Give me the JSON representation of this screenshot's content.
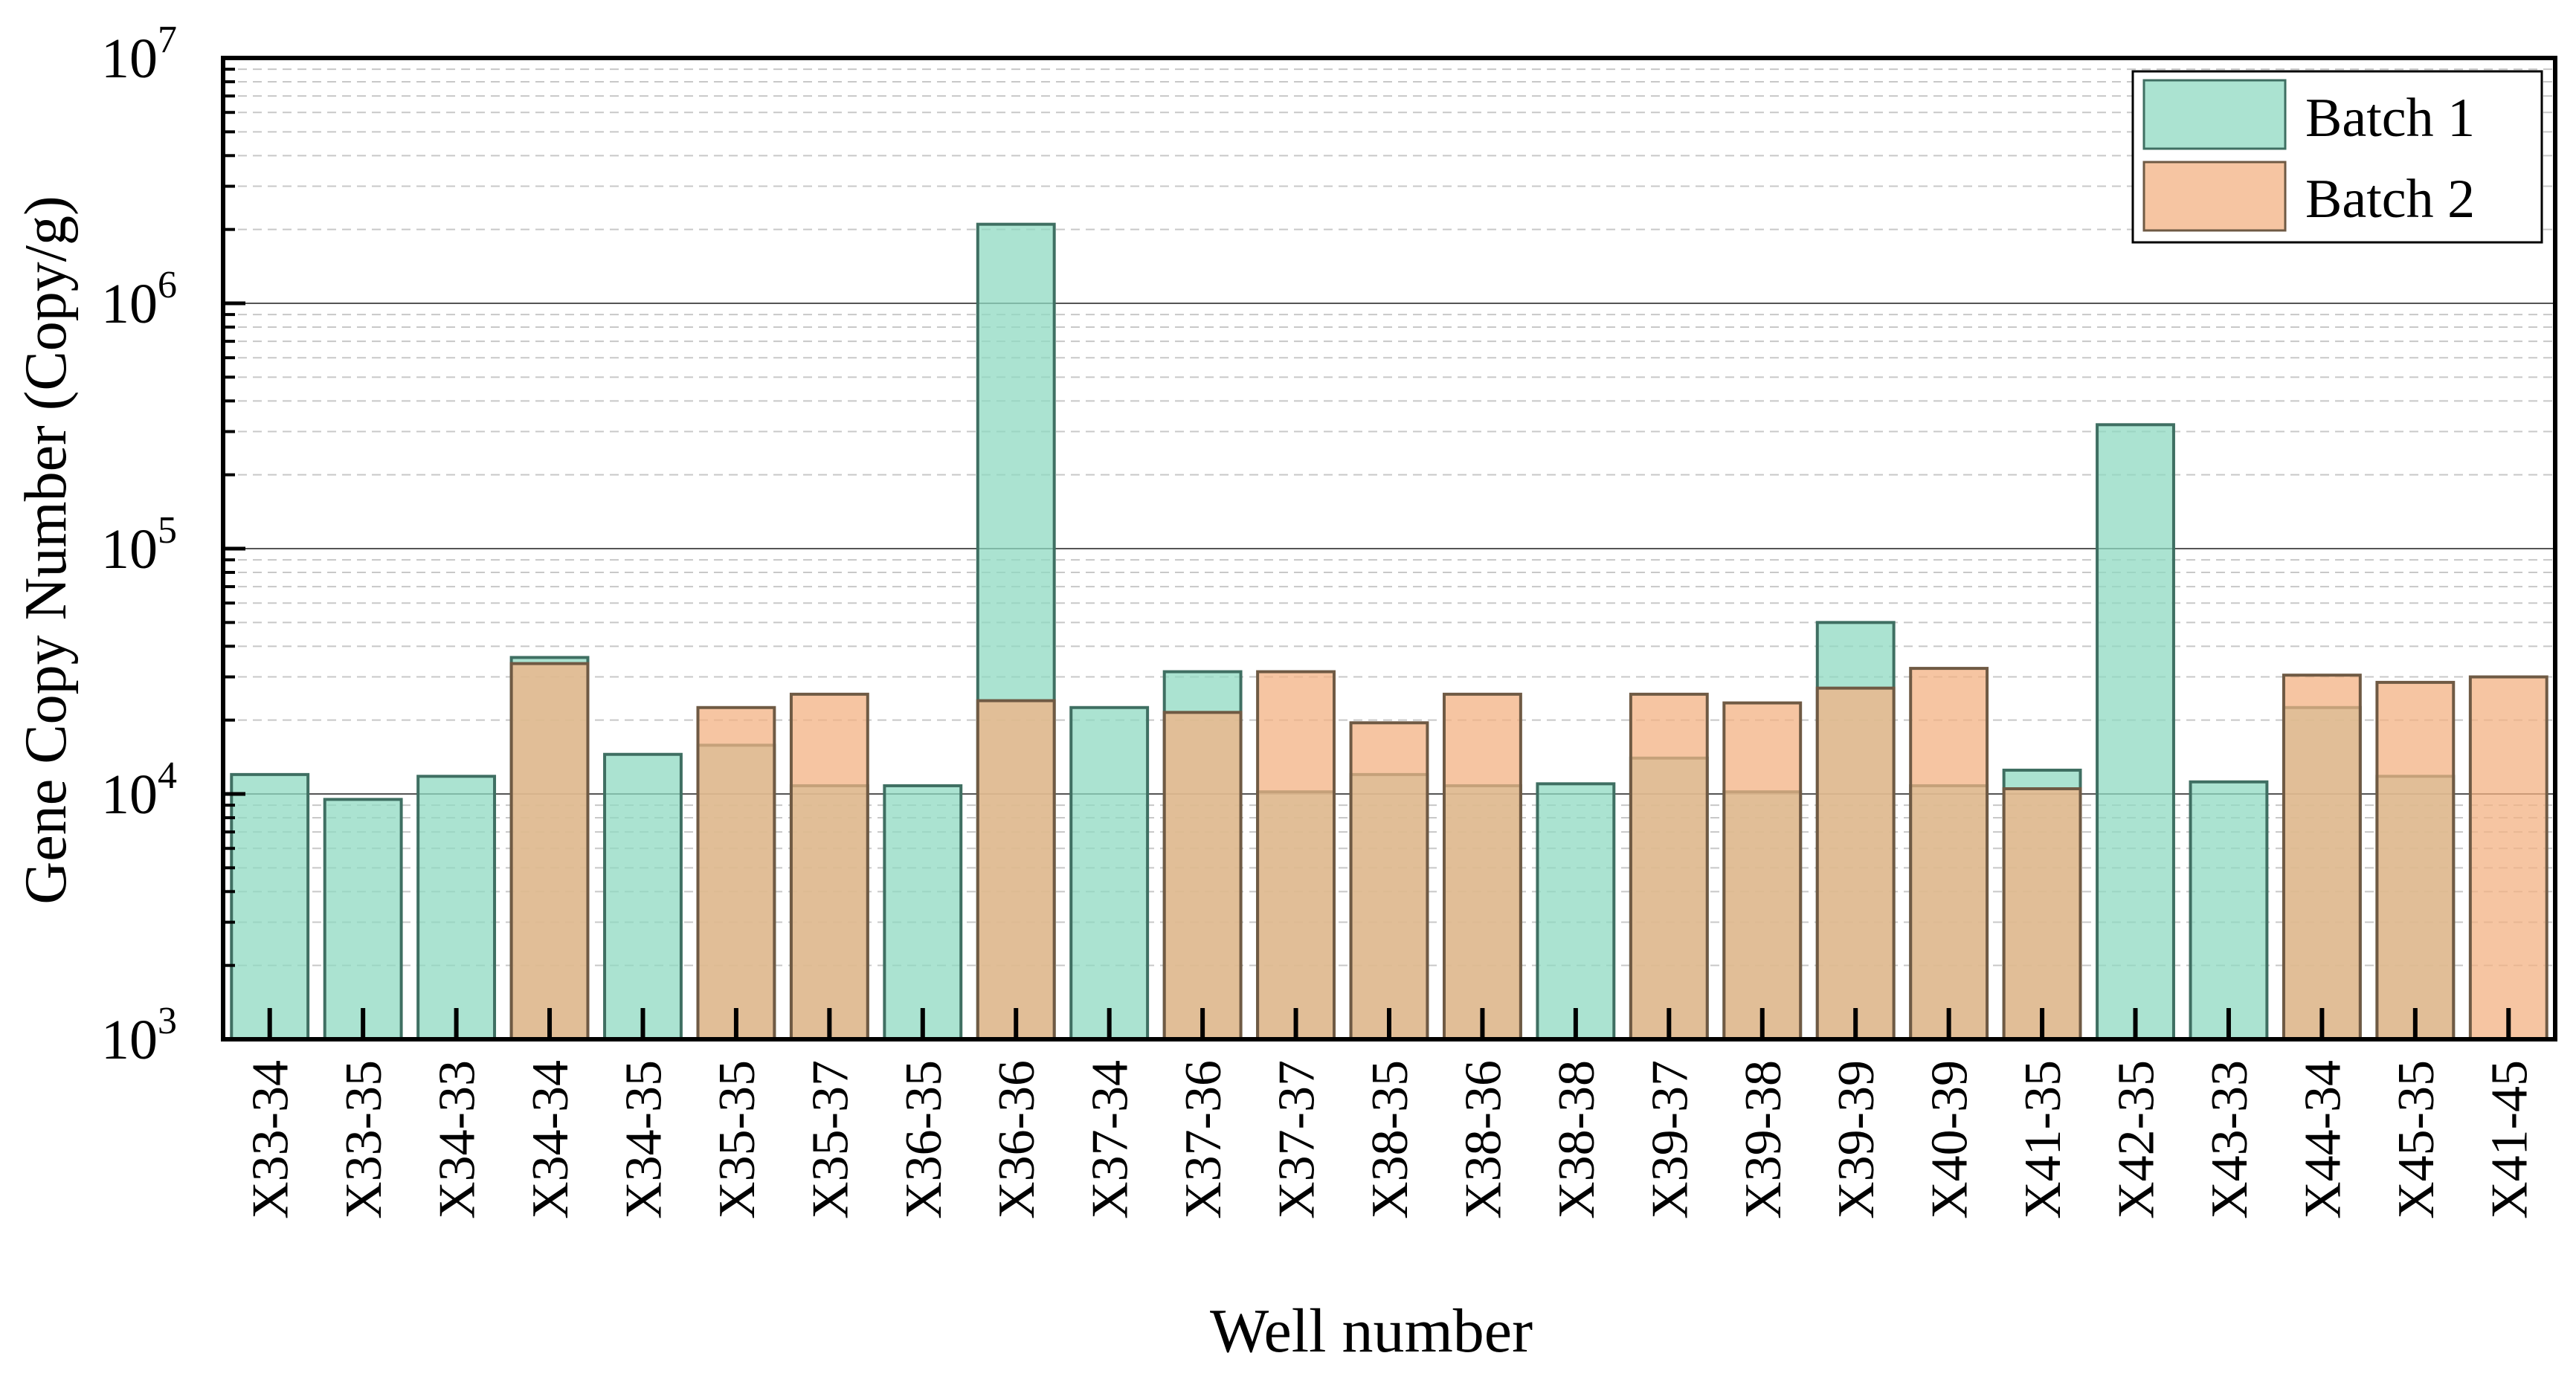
{
  "chart_data": {
    "type": "bar",
    "xlabel": "Well number",
    "ylabel": "Gene Copy Number (Copy/g)",
    "yscale": "log",
    "ylim": [
      1000,
      10000000
    ],
    "y_ticks": [
      {
        "base": "10",
        "exp": "3"
      },
      {
        "base": "10",
        "exp": "4"
      },
      {
        "base": "10",
        "exp": "5"
      },
      {
        "base": "10",
        "exp": "6"
      },
      {
        "base": "10",
        "exp": "7"
      }
    ],
    "grid": "major solid, minor dashed",
    "legend_position": "top-right",
    "categories": [
      "X33-34",
      "X33-35",
      "X34-33",
      "X34-34",
      "X34-35",
      "X35-35",
      "X35-37",
      "X36-35",
      "X36-36",
      "X37-34",
      "X37-36",
      "X37-37",
      "X38-35",
      "X38-36",
      "X38-38",
      "X39-37",
      "X39-38",
      "X39-39",
      "X40-39",
      "X41-35",
      "X42-35",
      "X43-33",
      "X44-34",
      "X45-35",
      "X41-45"
    ],
    "series": [
      {
        "name": "Batch 1",
        "color": "#8fd9c2",
        "edge": "#3f6f62",
        "values": [
          12000,
          9500,
          11800,
          36000,
          14500,
          15800,
          10800,
          10800,
          2100000,
          22500,
          31500,
          10200,
          12000,
          10800,
          11000,
          14000,
          10200,
          50000,
          10800,
          12500,
          320000,
          11200,
          22500,
          11800,
          null
        ]
      },
      {
        "name": "Batch 2",
        "color": "#f3b283",
        "edge": "#6f5a44",
        "values": [
          null,
          null,
          null,
          34000,
          null,
          22500,
          25500,
          null,
          24000,
          null,
          21500,
          31500,
          19500,
          25500,
          null,
          25500,
          23500,
          27000,
          32500,
          10500,
          null,
          null,
          30500,
          28500,
          30000
        ]
      }
    ]
  }
}
